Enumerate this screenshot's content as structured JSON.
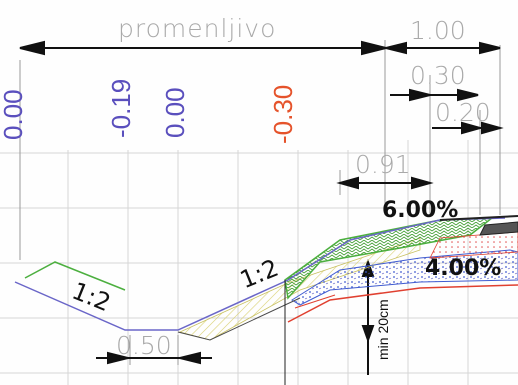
{
  "colors": {
    "background": "#fefefe",
    "grid": "#d6d6d6",
    "dimension_line": "#111111",
    "light_text": "#a9a9a9",
    "blue_elevation": "#5a4fbd",
    "red_elevation": "#e5532b",
    "green_grass": "#4caf3f",
    "hatch_yellow": "#d8d070",
    "profile_line": "#6a66c8",
    "subgrade_red": "#e04030",
    "asphalt_dark": "#555555"
  },
  "dimensions": {
    "top_width": "promenljivo",
    "shoulder_width": "1.00",
    "width_030": "0.30",
    "width_020": "0.20",
    "width_091": "0.91",
    "ditch_bottom": "0.50",
    "layer_thickness": "min 20cm"
  },
  "elevations": [
    {
      "label": "0.00",
      "color": "#5a4fbd"
    },
    {
      "label": "-0.19",
      "color": "#5a4fbd"
    },
    {
      "label": "0.00",
      "color": "#5a4fbd"
    },
    {
      "label": "-0.30",
      "color": "#e5532b"
    }
  ],
  "slopes": {
    "left_slope": "1:2",
    "right_slope": "1:2",
    "shoulder_grade": "6.00%",
    "pavement_grade": "4.00%"
  }
}
